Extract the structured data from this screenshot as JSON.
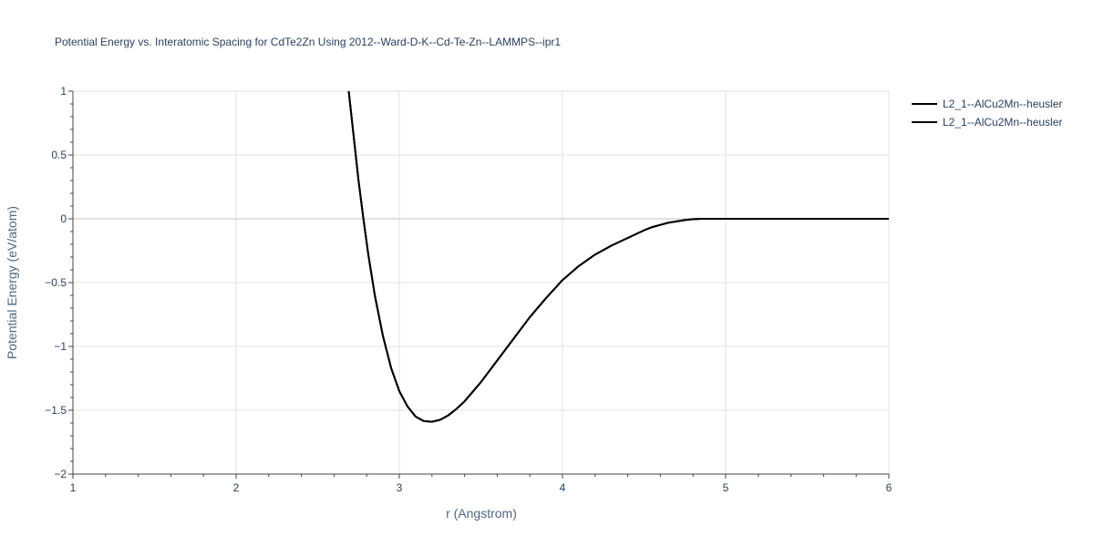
{
  "chart_data": {
    "type": "line",
    "title": "Potential Energy vs. Interatomic Spacing for CdTe2Zn Using 2012--Ward-D-K--Cd-Te-Zn--LAMMPS--ipr1",
    "xlabel": "r (Angstrom)",
    "ylabel": "Potential Energy (eV/atom)",
    "xlim": [
      1,
      6
    ],
    "ylim": [
      -2,
      1
    ],
    "xticks": [
      1,
      2,
      3,
      4,
      5,
      6
    ],
    "xtick_labels": [
      "1",
      "2",
      "3",
      "4",
      "5",
      "6"
    ],
    "yticks": [
      1,
      0.5,
      0,
      -0.5,
      -1,
      -1.5,
      -2
    ],
    "ytick_labels": [
      "1",
      "0.5",
      "0",
      "−0.5",
      "−1",
      "−1.5",
      "−2"
    ],
    "grid": true,
    "legend_position": "top-right",
    "series": [
      {
        "name": "L2_1--AlCu2Mn--heusler",
        "color": "#000000",
        "x": [
          2.69,
          2.72,
          2.75,
          2.78,
          2.81,
          2.85,
          2.9,
          2.95,
          3.0,
          3.05,
          3.1,
          3.15,
          3.2,
          3.25,
          3.3,
          3.35,
          3.4,
          3.5,
          3.6,
          3.7,
          3.8,
          3.9,
          4.0,
          4.1,
          4.2,
          4.3,
          4.4,
          4.5,
          4.55,
          4.65,
          4.75,
          4.8,
          4.85,
          5.0,
          5.5,
          6.0
        ],
        "y": [
          1.0,
          0.65,
          0.3,
          0.0,
          -0.28,
          -0.6,
          -0.92,
          -1.17,
          -1.35,
          -1.47,
          -1.55,
          -1.585,
          -1.59,
          -1.575,
          -1.54,
          -1.49,
          -1.43,
          -1.28,
          -1.11,
          -0.94,
          -0.77,
          -0.62,
          -0.48,
          -0.37,
          -0.28,
          -0.21,
          -0.15,
          -0.09,
          -0.065,
          -0.03,
          -0.01,
          -0.003,
          0.0,
          0.0,
          0.0,
          0.0
        ]
      },
      {
        "name": "L2_1--AlCu2Mn--heusler",
        "color": "#000000",
        "x": [
          2.69,
          2.72,
          2.75,
          2.78,
          2.81,
          2.85,
          2.9,
          2.95,
          3.0,
          3.05,
          3.1,
          3.15,
          3.2,
          3.25,
          3.3,
          3.35,
          3.4,
          3.5,
          3.6,
          3.7,
          3.8,
          3.9,
          4.0,
          4.1,
          4.2,
          4.3,
          4.4,
          4.5,
          4.55,
          4.65,
          4.75,
          4.8,
          4.85,
          5.0,
          5.5,
          6.0
        ],
        "y": [
          1.0,
          0.65,
          0.3,
          0.0,
          -0.28,
          -0.6,
          -0.92,
          -1.17,
          -1.35,
          -1.47,
          -1.55,
          -1.585,
          -1.59,
          -1.575,
          -1.54,
          -1.49,
          -1.43,
          -1.28,
          -1.11,
          -0.94,
          -0.77,
          -0.62,
          -0.48,
          -0.37,
          -0.28,
          -0.21,
          -0.15,
          -0.09,
          -0.065,
          -0.03,
          -0.01,
          -0.003,
          0.0,
          0.0,
          0.0,
          0.0
        ]
      }
    ]
  }
}
